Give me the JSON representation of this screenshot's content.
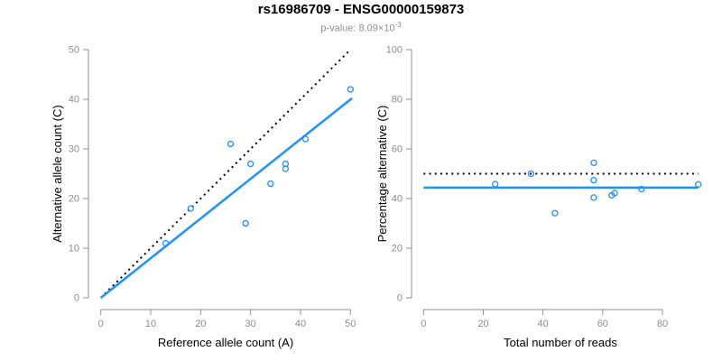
{
  "header": {
    "title": "rs16986709 - ENSG00000159873",
    "subtitle_text": "p-value: 8.09×10",
    "subtitle_exponent": "-3"
  },
  "colors": {
    "accent_blue": "#1E90FF",
    "dotted_black": "#000000",
    "axis_gray": "#8f8f8f",
    "tick_label_gray": "#8c8c8c",
    "axis_title_black": "#000000",
    "subtitle_gray": "#8f8f8f"
  },
  "chart_data": [
    {
      "type": "scatter",
      "title": "",
      "xlabel": "Reference allele count (A)",
      "ylabel": "Alternative allele count (C)",
      "xlim": [
        0,
        50
      ],
      "ylim": [
        0,
        50
      ],
      "xticks": [
        0,
        10,
        20,
        30,
        40,
        50
      ],
      "yticks": [
        0,
        10,
        20,
        30,
        40,
        50
      ],
      "grid": false,
      "legend": null,
      "marker": {
        "shape": "open-circle",
        "color": "#1E90FF",
        "radius": 3
      },
      "points": [
        [
          13,
          11
        ],
        [
          18,
          18
        ],
        [
          26,
          31
        ],
        [
          29,
          15
        ],
        [
          30,
          27
        ],
        [
          34,
          23
        ],
        [
          37,
          26
        ],
        [
          37,
          27
        ],
        [
          41,
          32
        ],
        [
          50,
          42
        ]
      ],
      "lines": [
        {
          "name": "identity-line",
          "style": "dotted",
          "color": "#000000",
          "x1": 0,
          "y1": 0,
          "x2": 50,
          "y2": 50
        },
        {
          "name": "regression-line",
          "style": "solid",
          "color": "#1E90FF",
          "x1": 0,
          "y1": 0,
          "x2": 50.3,
          "y2": 40.2
        }
      ]
    },
    {
      "type": "scatter",
      "title": "",
      "xlabel": "Total number of reads",
      "ylabel": "Percentage alternative (C)",
      "xlim": [
        0,
        92
      ],
      "ylim": [
        0,
        100
      ],
      "xticks": [
        0,
        20,
        40,
        60,
        80
      ],
      "yticks": [
        0,
        20,
        40,
        60,
        80,
        100
      ],
      "grid": false,
      "legend": null,
      "marker": {
        "shape": "open-circle",
        "color": "#1E90FF",
        "radius": 3
      },
      "points": [
        [
          24,
          45.8
        ],
        [
          36,
          50
        ],
        [
          44,
          34.1
        ],
        [
          57,
          54.4
        ],
        [
          57,
          47.4
        ],
        [
          57,
          40.4
        ],
        [
          63,
          41.3
        ],
        [
          64,
          42.2
        ],
        [
          73,
          43.8
        ],
        [
          92,
          45.7
        ]
      ],
      "lines": [
        {
          "name": "expected-50pct-line",
          "style": "dotted",
          "color": "#000000",
          "x1": 0,
          "y1": 50,
          "x2": 92,
          "y2": 50
        },
        {
          "name": "mean-percentage-line",
          "style": "solid",
          "color": "#1E90FF",
          "x1": 0,
          "y1": 44.4,
          "x2": 92,
          "y2": 44.4
        }
      ]
    }
  ]
}
